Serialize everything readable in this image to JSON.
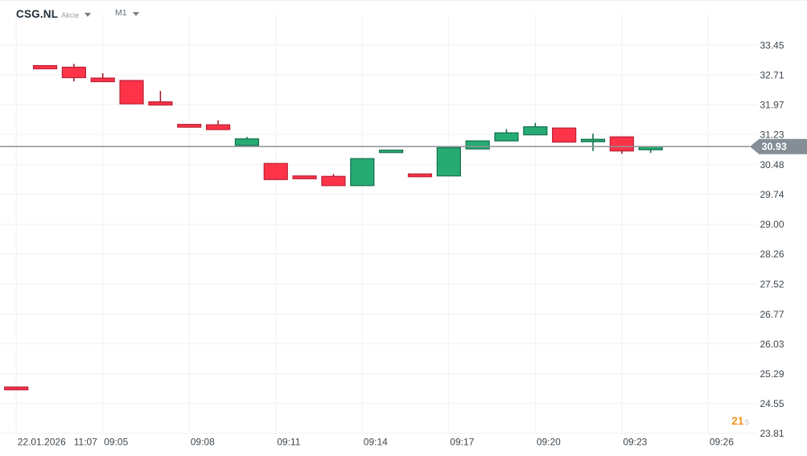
{
  "header": {
    "symbol": "CSG.NL",
    "instrument_type": "Akcie",
    "timeframe": "M1"
  },
  "countdown": {
    "value": "21",
    "unit": "s"
  },
  "colors": {
    "background": "#ffffff",
    "grid": "#f1f1f4",
    "up_fill": "#26ab72",
    "up_border": "#156f4e",
    "up_wick": "#156f4e",
    "down_fill": "#fd3347",
    "down_border": "#bb2138",
    "down_wick": "#a21d2b",
    "price_line": "#8b9299",
    "price_tag_bg": "#858e96",
    "price_tag_text": "#ffffff",
    "axis_text": "#3f474e",
    "countdown_value": "#f7941d",
    "countdown_unit": "#c5c9cc"
  },
  "chart_data": {
    "type": "candlestick",
    "symbol": "CSG.NL",
    "timeframe": "M1",
    "last_price": 30.93,
    "ylim": [
      23.6,
      33.8
    ],
    "grid": true,
    "y_ticks": [
      33.45,
      32.71,
      31.97,
      31.23,
      30.48,
      29.74,
      29.0,
      28.26,
      27.52,
      26.77,
      26.03,
      25.29,
      24.55,
      23.81
    ],
    "x_ticks": [
      {
        "slot": 0,
        "label": "22.01.2026   11:07"
      },
      {
        "slot": 3,
        "label": "09:05"
      },
      {
        "slot": 6,
        "label": "09:08"
      },
      {
        "slot": 9,
        "label": "09:11"
      },
      {
        "slot": 12,
        "label": "09:14"
      },
      {
        "slot": 15,
        "label": "09:17"
      },
      {
        "slot": 18,
        "label": "09:20"
      },
      {
        "slot": 21,
        "label": "09:23"
      },
      {
        "slot": 24,
        "label": "09:26"
      }
    ],
    "candles": [
      {
        "slot": 0,
        "time": "22.01.2026 11:07",
        "o": 24.96,
        "h": 24.96,
        "l": 24.89,
        "c": 24.89
      },
      {
        "slot": 1,
        "time": "09:03",
        "o": 32.94,
        "h": 32.94,
        "l": 32.86,
        "c": 32.86
      },
      {
        "slot": 2,
        "time": "09:04",
        "o": 32.9,
        "h": 32.98,
        "l": 32.55,
        "c": 32.64
      },
      {
        "slot": 3,
        "time": "09:05",
        "o": 32.63,
        "h": 32.75,
        "l": 32.54,
        "c": 32.54
      },
      {
        "slot": 4,
        "time": "09:06",
        "o": 32.57,
        "h": 32.57,
        "l": 31.99,
        "c": 31.99
      },
      {
        "slot": 5,
        "time": "09:07",
        "o": 32.04,
        "h": 32.31,
        "l": 31.96,
        "c": 31.96
      },
      {
        "slot": 6,
        "time": "09:08",
        "o": 31.48,
        "h": 31.48,
        "l": 31.41,
        "c": 31.41
      },
      {
        "slot": 7,
        "time": "09:09",
        "o": 31.47,
        "h": 31.58,
        "l": 31.35,
        "c": 31.35
      },
      {
        "slot": 8,
        "time": "09:10",
        "o": 30.96,
        "h": 31.17,
        "l": 30.96,
        "c": 31.12
      },
      {
        "slot": 9,
        "time": "09:11",
        "o": 30.51,
        "h": 30.51,
        "l": 30.11,
        "c": 30.11
      },
      {
        "slot": 10,
        "time": "09:12",
        "o": 30.2,
        "h": 30.2,
        "l": 30.13,
        "c": 30.13
      },
      {
        "slot": 11,
        "time": "09:13",
        "o": 30.19,
        "h": 30.25,
        "l": 29.96,
        "c": 29.96
      },
      {
        "slot": 12,
        "time": "09:14",
        "o": 29.96,
        "h": 30.63,
        "l": 29.96,
        "c": 30.63
      },
      {
        "slot": 13,
        "time": "09:15",
        "o": 30.78,
        "h": 30.84,
        "l": 30.78,
        "c": 30.84
      },
      {
        "slot": 14,
        "time": "09:16",
        "o": 30.25,
        "h": 30.25,
        "l": 30.18,
        "c": 30.18
      },
      {
        "slot": 15,
        "time": "09:17",
        "o": 30.2,
        "h": 30.9,
        "l": 30.2,
        "c": 30.9
      },
      {
        "slot": 16,
        "time": "09:18",
        "o": 30.87,
        "h": 31.07,
        "l": 30.87,
        "c": 31.07
      },
      {
        "slot": 17,
        "time": "09:19",
        "o": 31.07,
        "h": 31.36,
        "l": 31.07,
        "c": 31.27
      },
      {
        "slot": 18,
        "time": "09:20",
        "o": 31.22,
        "h": 31.52,
        "l": 31.22,
        "c": 31.42
      },
      {
        "slot": 19,
        "time": "09:21",
        "o": 31.39,
        "h": 31.39,
        "l": 31.04,
        "c": 31.04
      },
      {
        "slot": 20,
        "time": "09:22",
        "o": 31.05,
        "h": 31.25,
        "l": 30.82,
        "c": 31.11
      },
      {
        "slot": 21,
        "time": "09:23",
        "o": 31.17,
        "h": 31.17,
        "l": 30.75,
        "c": 30.82
      },
      {
        "slot": 22,
        "time": "09:24",
        "o": 30.85,
        "h": 30.93,
        "l": 30.77,
        "c": 30.93
      }
    ]
  }
}
